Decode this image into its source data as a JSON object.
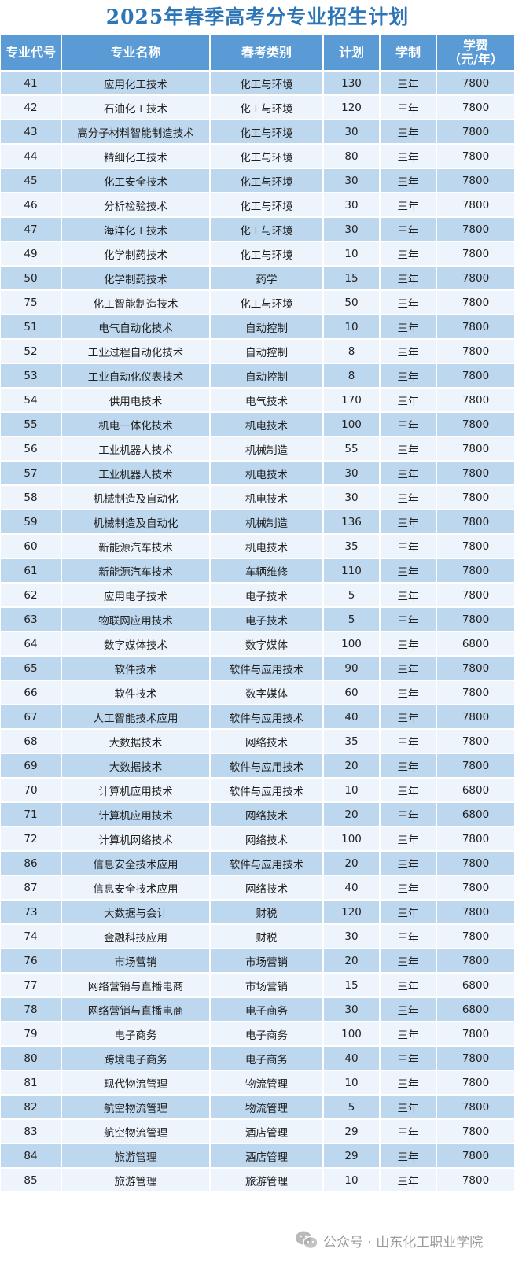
{
  "title": "2025年春季高考分专业招生计划",
  "headers": [
    "专业代号",
    "专业名称",
    "春考类别",
    "计划",
    "学制",
    "学费",
    "（元/年）"
  ],
  "rows": [
    [
      "41",
      "应用化工技术",
      "化工与环境",
      "130",
      "三年",
      "7800"
    ],
    [
      "42",
      "石油化工技术",
      "化工与环境",
      "120",
      "三年",
      "7800"
    ],
    [
      "43",
      "高分子材料智能制造技术",
      "化工与环境",
      "30",
      "三年",
      "7800"
    ],
    [
      "44",
      "精细化工技术",
      "化工与环境",
      "80",
      "三年",
      "7800"
    ],
    [
      "45",
      "化工安全技术",
      "化工与环境",
      "30",
      "三年",
      "7800"
    ],
    [
      "46",
      "分析检验技术",
      "化工与环境",
      "30",
      "三年",
      "7800"
    ],
    [
      "47",
      "海洋化工技术",
      "化工与环境",
      "30",
      "三年",
      "7800"
    ],
    [
      "49",
      "化学制药技术",
      "化工与环境",
      "10",
      "三年",
      "7800"
    ],
    [
      "50",
      "化学制药技术",
      "药学",
      "15",
      "三年",
      "7800"
    ],
    [
      "75",
      "化工智能制造技术",
      "化工与环境",
      "50",
      "三年",
      "7800"
    ],
    [
      "51",
      "电气自动化技术",
      "自动控制",
      "10",
      "三年",
      "7800"
    ],
    [
      "52",
      "工业过程自动化技术",
      "自动控制",
      "8",
      "三年",
      "7800"
    ],
    [
      "53",
      "工业自动化仪表技术",
      "自动控制",
      "8",
      "三年",
      "7800"
    ],
    [
      "54",
      "供用电技术",
      "电气技术",
      "170",
      "三年",
      "7800"
    ],
    [
      "55",
      "机电一体化技术",
      "机电技术",
      "100",
      "三年",
      "7800"
    ],
    [
      "56",
      "工业机器人技术",
      "机械制造",
      "55",
      "三年",
      "7800"
    ],
    [
      "57",
      "工业机器人技术",
      "机电技术",
      "30",
      "三年",
      "7800"
    ],
    [
      "58",
      "机械制造及自动化",
      "机电技术",
      "30",
      "三年",
      "7800"
    ],
    [
      "59",
      "机械制造及自动化",
      "机械制造",
      "136",
      "三年",
      "7800"
    ],
    [
      "60",
      "新能源汽车技术",
      "机电技术",
      "35",
      "三年",
      "7800"
    ],
    [
      "61",
      "新能源汽车技术",
      "车辆维修",
      "110",
      "三年",
      "7800"
    ],
    [
      "62",
      "应用电子技术",
      "电子技术",
      "5",
      "三年",
      "7800"
    ],
    [
      "63",
      "物联网应用技术",
      "电子技术",
      "5",
      "三年",
      "7800"
    ],
    [
      "64",
      "数字媒体技术",
      "数字媒体",
      "100",
      "三年",
      "6800"
    ],
    [
      "65",
      "软件技术",
      "软件与应用技术",
      "90",
      "三年",
      "7800"
    ],
    [
      "66",
      "软件技术",
      "数字媒体",
      "60",
      "三年",
      "7800"
    ],
    [
      "67",
      "人工智能技术应用",
      "软件与应用技术",
      "40",
      "三年",
      "7800"
    ],
    [
      "68",
      "大数据技术",
      "网络技术",
      "35",
      "三年",
      "7800"
    ],
    [
      "69",
      "大数据技术",
      "软件与应用技术",
      "20",
      "三年",
      "7800"
    ],
    [
      "70",
      "计算机应用技术",
      "软件与应用技术",
      "10",
      "三年",
      "6800"
    ],
    [
      "71",
      "计算机应用技术",
      "网络技术",
      "20",
      "三年",
      "6800"
    ],
    [
      "72",
      "计算机网络技术",
      "网络技术",
      "100",
      "三年",
      "7800"
    ],
    [
      "86",
      "信息安全技术应用",
      "软件与应用技术",
      "20",
      "三年",
      "7800"
    ],
    [
      "87",
      "信息安全技术应用",
      "网络技术",
      "40",
      "三年",
      "7800"
    ],
    [
      "73",
      "大数据与会计",
      "财税",
      "120",
      "三年",
      "7800"
    ],
    [
      "74",
      "金融科技应用",
      "财税",
      "30",
      "三年",
      "7800"
    ],
    [
      "76",
      "市场营销",
      "市场营销",
      "20",
      "三年",
      "7800"
    ],
    [
      "77",
      "网络营销与直播电商",
      "市场营销",
      "15",
      "三年",
      "6800"
    ],
    [
      "78",
      "网络营销与直播电商",
      "电子商务",
      "30",
      "三年",
      "6800"
    ],
    [
      "79",
      "电子商务",
      "电子商务",
      "100",
      "三年",
      "7800"
    ],
    [
      "80",
      "跨境电子商务",
      "电子商务",
      "40",
      "三年",
      "7800"
    ],
    [
      "81",
      "现代物流管理",
      "物流管理",
      "10",
      "三年",
      "7800"
    ],
    [
      "82",
      "航空物流管理",
      "物流管理",
      "5",
      "三年",
      "7800"
    ],
    [
      "83",
      "航空物流管理",
      "酒店管理",
      "29",
      "三年",
      "7800"
    ],
    [
      "84",
      "旅游管理",
      "酒店管理",
      "29",
      "三年",
      "7800"
    ],
    [
      "85",
      "旅游管理",
      "旅游管理",
      "10",
      "三年",
      "7800"
    ]
  ],
  "watermark": "公众号 · 山东化工职业学院",
  "colors": {
    "title": "#2e75b6",
    "header_bg": "#5b9bd5",
    "row_odd": "#bdd7ee",
    "row_even": "#eef4fb"
  },
  "icons": {
    "watermark": "wechat-icon"
  }
}
